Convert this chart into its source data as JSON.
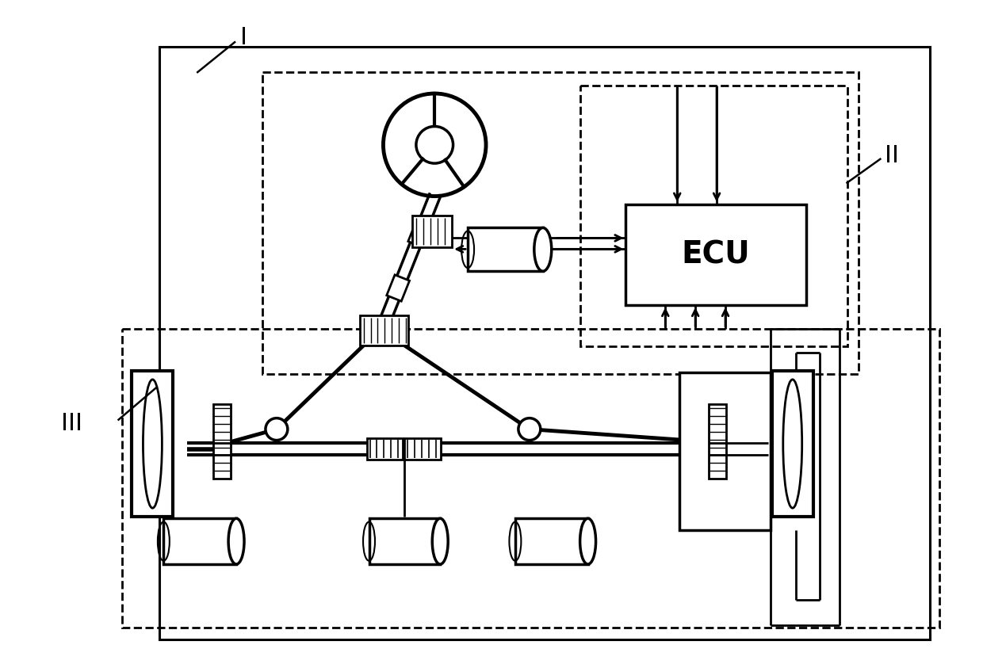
{
  "bg_color": "#ffffff",
  "line_color": "#000000",
  "label_I": "I",
  "label_II": "II",
  "label_III": "III",
  "ecu_text": "ECU",
  "fig_width": 12.4,
  "fig_height": 8.43,
  "dpi": 100
}
